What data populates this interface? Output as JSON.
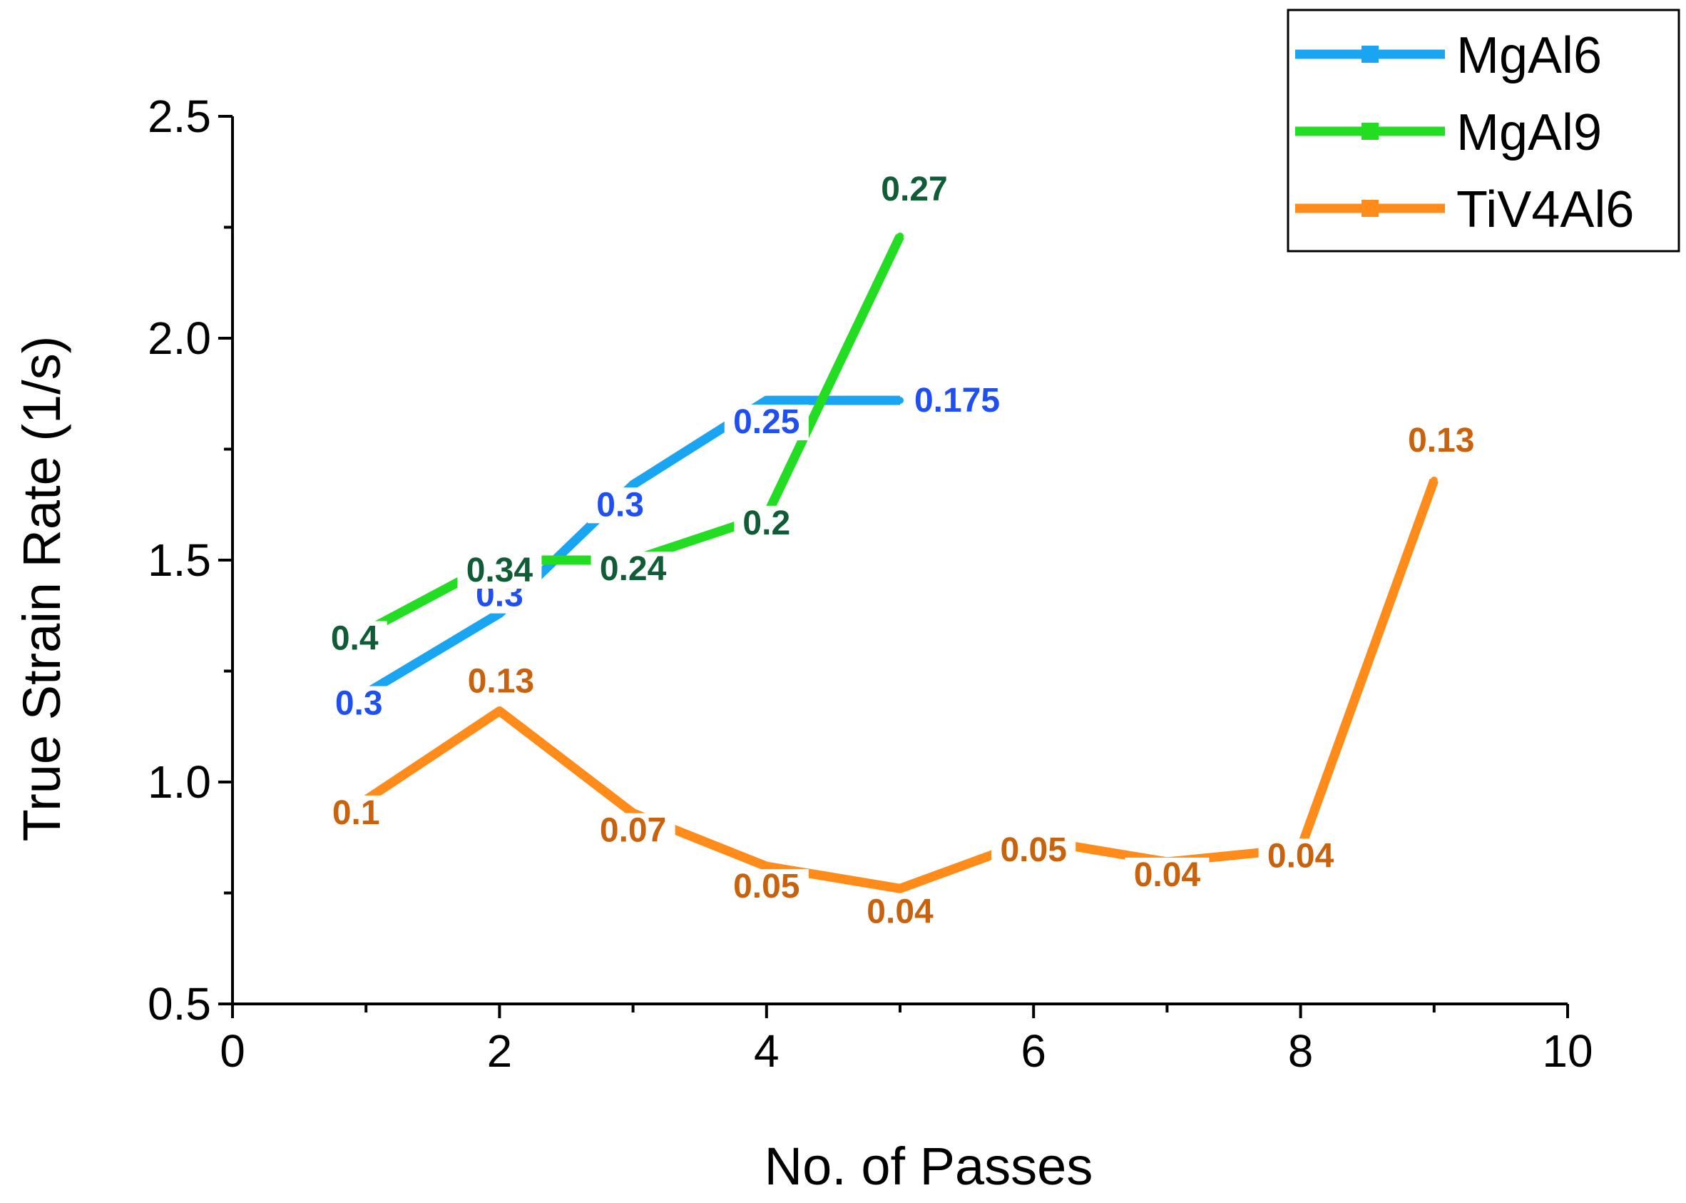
{
  "chart_data": {
    "type": "line",
    "title": "",
    "xlabel": "No. of Passes",
    "ylabel": "True Strain Rate (1/s)",
    "xlim": [
      0,
      10
    ],
    "ylim": [
      0.5,
      2.5
    ],
    "xticks": [
      0,
      2,
      4,
      6,
      8,
      10
    ],
    "yticks": [
      0.5,
      1.0,
      1.5,
      2.0,
      2.5
    ],
    "xtick_labels": [
      "0",
      "2",
      "4",
      "6",
      "8",
      "10"
    ],
    "ytick_labels": [
      "0.5",
      "1.0",
      "1.5",
      "2.0",
      "2.5"
    ],
    "grid": false,
    "legend_position": "top-right",
    "series": [
      {
        "name": "MgAl6",
        "color": "#1aa5f2",
        "label_color": "#1f4ff0",
        "x": [
          1,
          2,
          3,
          4,
          5
        ],
        "y": [
          1.2,
          1.38,
          1.67,
          1.86,
          1.86
        ],
        "point_labels": [
          "0.3",
          "0.3",
          "0.3",
          "0.25",
          "0.175"
        ]
      },
      {
        "name": "MgAl9",
        "color": "#22dd22",
        "label_color": "#0f5c36",
        "x": [
          1,
          2,
          3,
          4,
          5
        ],
        "y": [
          1.34,
          1.5,
          1.5,
          1.6,
          2.23
        ],
        "point_labels": [
          "0.4",
          "0.34",
          "0.24",
          "0.2",
          "0.27"
        ]
      },
      {
        "name": "TiV4Al6",
        "color": "#ff8c1a",
        "label_color": "#c8620c",
        "x": [
          1,
          2,
          3,
          4,
          5,
          6,
          7,
          8,
          9
        ],
        "y": [
          0.96,
          1.16,
          0.93,
          0.81,
          0.76,
          0.87,
          0.82,
          0.85,
          1.68
        ],
        "point_labels": [
          "0.1",
          "0.13",
          "0.07",
          "0.05",
          "0.04",
          "0.05",
          "0.04",
          "0.04",
          "0.13"
        ]
      }
    ]
  }
}
